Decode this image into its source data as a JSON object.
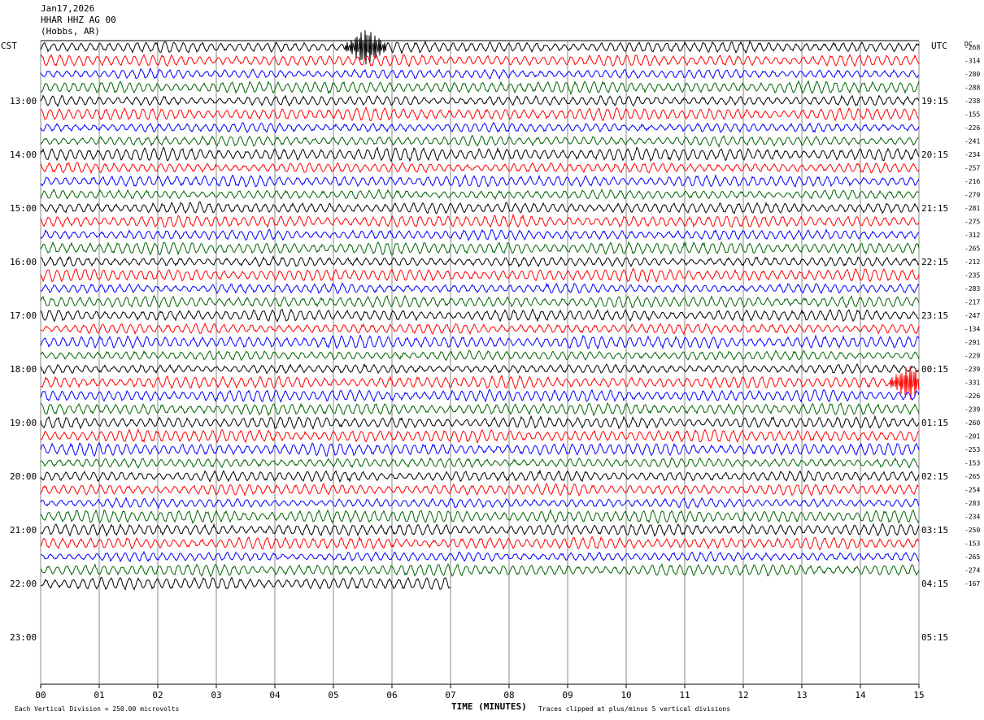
{
  "header": {
    "date": "Jan17,2026",
    "station": "HHAR HHZ AG 00",
    "location": "(Hobbs, AR)"
  },
  "left_zone": "CST",
  "right_zone": "UTC",
  "dc_header": "DC",
  "footer": {
    "scale_note": "Each Vertical Division =  250.00 microvolts",
    "x_title": "TIME (MINUTES)",
    "clip_note": "Traces clipped at plus/minus 5 vertical divisions"
  },
  "chart_data": {
    "type": "line",
    "xlabel": "TIME (MINUTES)",
    "xlim": [
      0,
      15
    ],
    "x_ticks": [
      "00",
      "01",
      "02",
      "03",
      "04",
      "05",
      "06",
      "07",
      "08",
      "09",
      "10",
      "11",
      "12",
      "13",
      "14",
      "15"
    ],
    "trace_interval_minutes": 15,
    "trace_colors": [
      "#000000",
      "#ff0000",
      "#0000ff",
      "#006400"
    ],
    "left_time_labels": [
      "13:00",
      "14:00",
      "15:00",
      "16:00",
      "17:00",
      "18:00",
      "19:00",
      "20:00",
      "21:00",
      "22:00",
      "23:00"
    ],
    "right_time_labels": [
      "19:15",
      "20:15",
      "21:15",
      "22:15",
      "23:15",
      "00:15",
      "01:15",
      "02:15",
      "03:15",
      "04:15",
      "05:15"
    ],
    "dc_offsets": [
      -268,
      -314,
      -280,
      -288,
      -238,
      -155,
      -226,
      -241,
      -234,
      -257,
      -216,
      -279,
      -281,
      -275,
      -312,
      -265,
      -212,
      -235,
      -283,
      -217,
      -247,
      -134,
      -291,
      -229,
      -239,
      -331,
      -226,
      -239,
      -260,
      -201,
      -253,
      -153,
      -265,
      -254,
      -283,
      -234,
      -250,
      -153,
      -265,
      -274,
      -167
    ],
    "last_trace_end_minute": 7.0,
    "events": [
      {
        "trace": 0,
        "minute": 5.55,
        "label": ""
      },
      {
        "trace": 25,
        "minute": 14.85,
        "label": ""
      }
    ]
  }
}
